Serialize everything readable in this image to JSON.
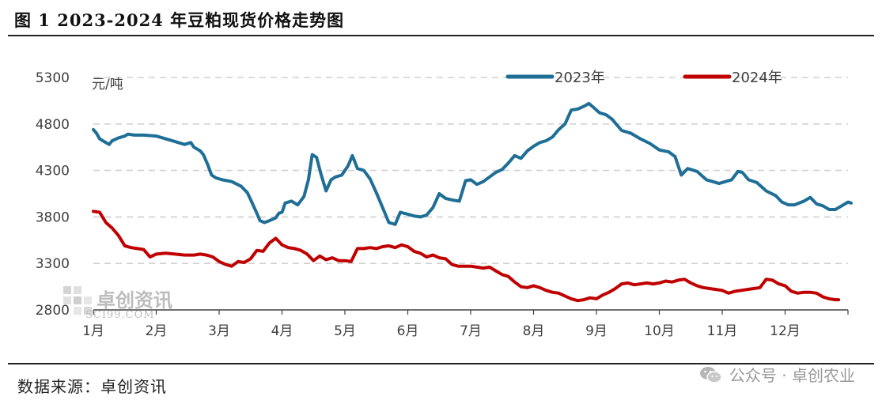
{
  "title": "图 1  2023-2024 年豆粕现货价格走势图",
  "source": "数据来源：卓创资讯",
  "wechat": "公众号 · 卓创农业",
  "watermark": {
    "name": "卓创资讯",
    "site": "SCI99.COM"
  },
  "colors": {
    "2023": "#1f6e96",
    "2024": "#c00000",
    "grid": "#d0d0d0",
    "axis": "#404040",
    "text": "#404040"
  },
  "chart_data": {
    "type": "line",
    "title": "",
    "unit": "元/吨",
    "ylim": [
      2800,
      5300
    ],
    "yticks": [
      2800,
      3300,
      3800,
      4300,
      4800,
      5300
    ],
    "xlim": [
      1,
      13
    ],
    "x_tick_labels": [
      "1月",
      "2月",
      "3月",
      "4月",
      "5月",
      "6月",
      "7月",
      "8月",
      "9月",
      "10月",
      "11月",
      "12月"
    ],
    "grid": "horizontal dashed",
    "legend_position": "top",
    "series": [
      {
        "name": "2023年",
        "color": "#1f6e96",
        "points": [
          [
            1.0,
            4740
          ],
          [
            1.05,
            4700
          ],
          [
            1.1,
            4640
          ],
          [
            1.15,
            4620
          ],
          [
            1.25,
            4580
          ],
          [
            1.3,
            4620
          ],
          [
            1.4,
            4650
          ],
          [
            1.5,
            4670
          ],
          [
            1.55,
            4690
          ],
          [
            1.65,
            4680
          ],
          [
            1.8,
            4680
          ],
          [
            2.0,
            4670
          ],
          [
            2.15,
            4640
          ],
          [
            2.3,
            4610
          ],
          [
            2.45,
            4580
          ],
          [
            2.55,
            4600
          ],
          [
            2.6,
            4550
          ],
          [
            2.7,
            4510
          ],
          [
            2.75,
            4470
          ],
          [
            2.82,
            4360
          ],
          [
            2.88,
            4250
          ],
          [
            2.95,
            4220
          ],
          [
            3.05,
            4200
          ],
          [
            3.2,
            4180
          ],
          [
            3.35,
            4130
          ],
          [
            3.45,
            4060
          ],
          [
            3.52,
            3960
          ],
          [
            3.58,
            3870
          ],
          [
            3.65,
            3760
          ],
          [
            3.72,
            3740
          ],
          [
            3.8,
            3760
          ],
          [
            3.9,
            3790
          ],
          [
            3.95,
            3840
          ],
          [
            4.0,
            3850
          ],
          [
            4.05,
            3950
          ],
          [
            4.15,
            3970
          ],
          [
            4.25,
            3930
          ],
          [
            4.35,
            4020
          ],
          [
            4.42,
            4200
          ],
          [
            4.48,
            4470
          ],
          [
            4.55,
            4440
          ],
          [
            4.62,
            4260
          ],
          [
            4.7,
            4080
          ],
          [
            4.78,
            4200
          ],
          [
            4.85,
            4230
          ],
          [
            4.95,
            4250
          ],
          [
            5.05,
            4350
          ],
          [
            5.12,
            4460
          ],
          [
            5.2,
            4320
          ],
          [
            5.3,
            4300
          ],
          [
            5.4,
            4210
          ],
          [
            5.5,
            4060
          ],
          [
            5.6,
            3900
          ],
          [
            5.7,
            3740
          ],
          [
            5.8,
            3720
          ],
          [
            5.88,
            3850
          ],
          [
            6.0,
            3830
          ],
          [
            6.1,
            3810
          ],
          [
            6.2,
            3800
          ],
          [
            6.3,
            3820
          ],
          [
            6.4,
            3900
          ],
          [
            6.5,
            4050
          ],
          [
            6.6,
            4000
          ],
          [
            6.72,
            3980
          ],
          [
            6.82,
            3970
          ],
          [
            6.92,
            4190
          ],
          [
            7.0,
            4200
          ],
          [
            7.1,
            4150
          ],
          [
            7.2,
            4180
          ],
          [
            7.3,
            4230
          ],
          [
            7.4,
            4280
          ],
          [
            7.5,
            4310
          ],
          [
            7.6,
            4380
          ],
          [
            7.7,
            4460
          ],
          [
            7.8,
            4430
          ],
          [
            7.9,
            4510
          ],
          [
            8.0,
            4560
          ],
          [
            8.1,
            4600
          ],
          [
            8.2,
            4620
          ],
          [
            8.3,
            4660
          ],
          [
            8.4,
            4740
          ],
          [
            8.5,
            4800
          ],
          [
            8.6,
            4950
          ],
          [
            8.7,
            4960
          ],
          [
            8.8,
            4990
          ],
          [
            8.88,
            5020
          ],
          [
            8.95,
            4980
          ],
          [
            9.05,
            4920
          ],
          [
            9.15,
            4900
          ],
          [
            9.25,
            4850
          ],
          [
            9.4,
            4730
          ],
          [
            9.55,
            4700
          ],
          [
            9.7,
            4640
          ],
          [
            9.85,
            4590
          ],
          [
            10.0,
            4520
          ],
          [
            10.15,
            4500
          ],
          [
            10.25,
            4450
          ],
          [
            10.35,
            4250
          ],
          [
            10.45,
            4320
          ],
          [
            10.6,
            4290
          ],
          [
            10.75,
            4200
          ],
          [
            10.85,
            4180
          ],
          [
            10.95,
            4160
          ],
          [
            11.05,
            4180
          ],
          [
            11.15,
            4200
          ],
          [
            11.25,
            4290
          ],
          [
            11.32,
            4280
          ],
          [
            11.42,
            4200
          ],
          [
            11.55,
            4170
          ],
          [
            11.7,
            4080
          ],
          [
            11.85,
            4030
          ],
          [
            11.95,
            3960
          ],
          [
            12.05,
            3930
          ],
          [
            12.15,
            3930
          ],
          [
            12.3,
            3970
          ],
          [
            12.4,
            4010
          ],
          [
            12.5,
            3940
          ],
          [
            12.6,
            3920
          ],
          [
            12.7,
            3880
          ],
          [
            12.8,
            3880
          ],
          [
            12.9,
            3920
          ],
          [
            13.0,
            3960
          ],
          [
            13.05,
            3950
          ]
        ]
      },
      {
        "name": "2024年",
        "color": "#c00000",
        "points": [
          [
            1.0,
            3860
          ],
          [
            1.1,
            3850
          ],
          [
            1.2,
            3740
          ],
          [
            1.3,
            3680
          ],
          [
            1.4,
            3600
          ],
          [
            1.5,
            3490
          ],
          [
            1.6,
            3470
          ],
          [
            1.7,
            3460
          ],
          [
            1.8,
            3450
          ],
          [
            1.9,
            3370
          ],
          [
            2.0,
            3400
          ],
          [
            2.15,
            3410
          ],
          [
            2.3,
            3400
          ],
          [
            2.45,
            3390
          ],
          [
            2.6,
            3390
          ],
          [
            2.7,
            3400
          ],
          [
            2.8,
            3390
          ],
          [
            2.9,
            3370
          ],
          [
            3.0,
            3320
          ],
          [
            3.1,
            3290
          ],
          [
            3.2,
            3270
          ],
          [
            3.3,
            3320
          ],
          [
            3.4,
            3310
          ],
          [
            3.5,
            3350
          ],
          [
            3.6,
            3440
          ],
          [
            3.7,
            3430
          ],
          [
            3.8,
            3520
          ],
          [
            3.9,
            3570
          ],
          [
            4.0,
            3500
          ],
          [
            4.1,
            3470
          ],
          [
            4.2,
            3460
          ],
          [
            4.3,
            3440
          ],
          [
            4.4,
            3400
          ],
          [
            4.5,
            3330
          ],
          [
            4.6,
            3380
          ],
          [
            4.7,
            3340
          ],
          [
            4.8,
            3360
          ],
          [
            4.9,
            3330
          ],
          [
            5.0,
            3330
          ],
          [
            5.1,
            3320
          ],
          [
            5.2,
            3460
          ],
          [
            5.3,
            3460
          ],
          [
            5.4,
            3470
          ],
          [
            5.5,
            3460
          ],
          [
            5.6,
            3480
          ],
          [
            5.7,
            3490
          ],
          [
            5.8,
            3470
          ],
          [
            5.9,
            3500
          ],
          [
            6.0,
            3480
          ],
          [
            6.1,
            3430
          ],
          [
            6.2,
            3410
          ],
          [
            6.3,
            3370
          ],
          [
            6.4,
            3390
          ],
          [
            6.5,
            3360
          ],
          [
            6.6,
            3350
          ],
          [
            6.7,
            3290
          ],
          [
            6.8,
            3270
          ],
          [
            6.9,
            3270
          ],
          [
            7.0,
            3270
          ],
          [
            7.1,
            3260
          ],
          [
            7.2,
            3250
          ],
          [
            7.3,
            3260
          ],
          [
            7.4,
            3220
          ],
          [
            7.5,
            3180
          ],
          [
            7.6,
            3160
          ],
          [
            7.7,
            3100
          ],
          [
            7.8,
            3050
          ],
          [
            7.9,
            3040
          ],
          [
            8.0,
            3060
          ],
          [
            8.1,
            3040
          ],
          [
            8.2,
            3010
          ],
          [
            8.3,
            2990
          ],
          [
            8.4,
            2980
          ],
          [
            8.5,
            2950
          ],
          [
            8.6,
            2920
          ],
          [
            8.7,
            2900
          ],
          [
            8.8,
            2910
          ],
          [
            8.9,
            2930
          ],
          [
            9.0,
            2920
          ],
          [
            9.1,
            2960
          ],
          [
            9.2,
            2990
          ],
          [
            9.3,
            3030
          ],
          [
            9.4,
            3080
          ],
          [
            9.5,
            3090
          ],
          [
            9.6,
            3070
          ],
          [
            9.7,
            3080
          ],
          [
            9.8,
            3090
          ],
          [
            9.9,
            3080
          ],
          [
            10.0,
            3090
          ],
          [
            10.1,
            3110
          ],
          [
            10.2,
            3100
          ],
          [
            10.3,
            3120
          ],
          [
            10.4,
            3130
          ],
          [
            10.5,
            3090
          ],
          [
            10.6,
            3060
          ],
          [
            10.7,
            3040
          ],
          [
            10.8,
            3030
          ],
          [
            10.9,
            3020
          ],
          [
            11.0,
            3010
          ],
          [
            11.1,
            2980
          ],
          [
            11.2,
            3000
          ],
          [
            11.3,
            3010
          ],
          [
            11.4,
            3020
          ],
          [
            11.5,
            3030
          ],
          [
            11.6,
            3040
          ],
          [
            11.7,
            3130
          ],
          [
            11.8,
            3120
          ],
          [
            11.9,
            3080
          ],
          [
            12.0,
            3060
          ],
          [
            12.1,
            3000
          ],
          [
            12.2,
            2980
          ],
          [
            12.3,
            2990
          ],
          [
            12.4,
            2990
          ],
          [
            12.5,
            2980
          ],
          [
            12.6,
            2940
          ],
          [
            12.7,
            2920
          ],
          [
            12.8,
            2910
          ],
          [
            12.85,
            2910
          ]
        ]
      }
    ]
  }
}
